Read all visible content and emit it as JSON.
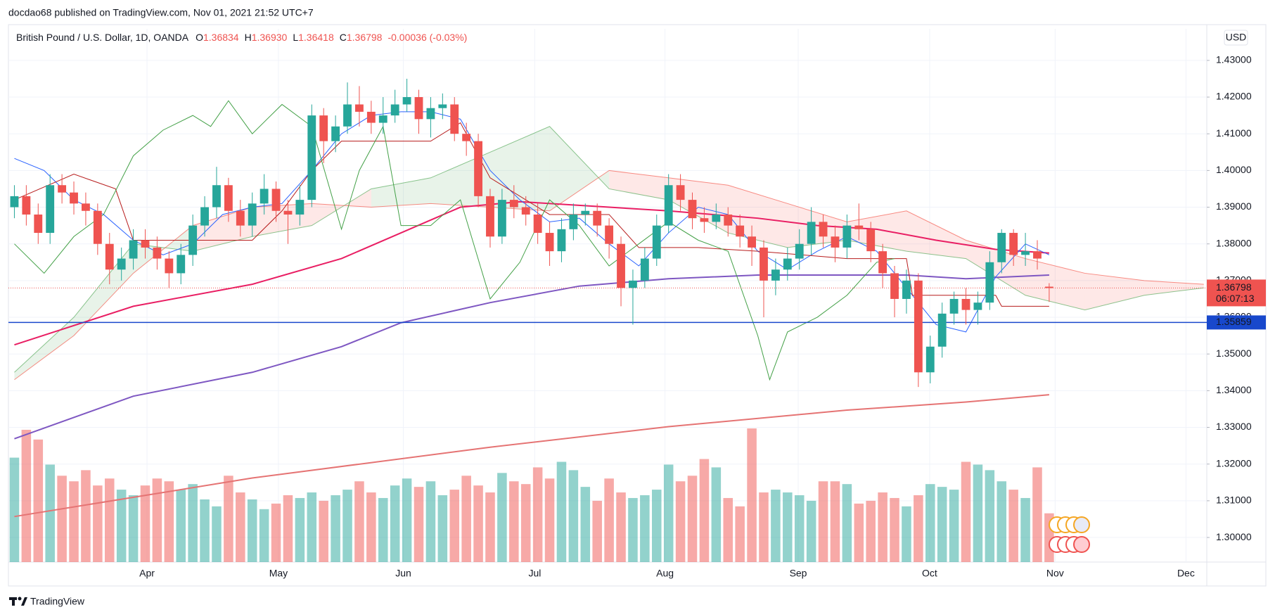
{
  "chart_data": {
    "type": "candlestick",
    "published": "docdao68 published on TradingView.com, Nov 01, 2021 21:52 UTC+7",
    "title": "British Pound / U.S. Dollar, 1D, OANDA",
    "ohlc_header": {
      "labels": [
        "O",
        "H",
        "L",
        "C"
      ],
      "values": [
        1.36834,
        {
          "value": 1.3693,
          "label": "1.36930"
        },
        1.36418,
        1.36798
      ],
      "change": "-0.00036 (-0.03%)"
    },
    "currency": "USD",
    "brand": "TradingView",
    "up_color": "#26a69a",
    "down_color": "#ef5350",
    "grid": true,
    "xlim": [
      -1,
      200.5
    ],
    "xticks": [
      {
        "value": 22.3,
        "label": "Apr"
      },
      {
        "value": 44.4,
        "label": "May"
      },
      {
        "value": 65.4,
        "label": "Jun"
      },
      {
        "value": 87.5,
        "label": "Jul"
      },
      {
        "value": 109.4,
        "label": "Aug"
      },
      {
        "value": 131.8,
        "label": "Sep"
      },
      {
        "value": 153.9,
        "label": "Oct"
      },
      {
        "value": 175,
        "label": "Nov"
      },
      {
        "value": 197,
        "label": "Dec"
      }
    ],
    "ylim": [
      1.2933,
      1.4386
    ],
    "yticks": [
      {
        "value": 1.3,
        "label": "1.30000"
      },
      {
        "value": 1.31,
        "label": "1.31000"
      },
      {
        "value": 1.32,
        "label": "1.32000"
      },
      {
        "value": 1.33,
        "label": "1.33000"
      },
      {
        "value": 1.34,
        "label": "1.34000"
      },
      {
        "value": 1.35,
        "label": "1.35000"
      },
      {
        "value": 1.36,
        "label": "1.36000"
      },
      {
        "value": 1.37,
        "label": "1.37000"
      },
      {
        "value": 1.38,
        "label": "1.38000"
      },
      {
        "value": 1.39,
        "label": "1.39000"
      },
      {
        "value": 1.4,
        "label": "1.40000"
      },
      {
        "value": 1.41,
        "label": "1.41000"
      },
      {
        "value": 1.42,
        "label": "1.42000"
      },
      {
        "value": 1.43,
        "label": "1.43000"
      }
    ],
    "x": [
      0,
      2,
      4,
      6,
      8,
      10,
      12,
      14,
      16,
      18,
      20,
      22,
      24,
      26,
      28,
      30,
      32,
      34,
      36,
      38,
      40,
      42,
      44,
      46,
      48,
      50,
      52,
      54,
      56,
      58,
      60,
      62,
      64,
      66,
      68,
      70,
      72,
      74,
      76,
      78,
      80,
      82,
      84,
      86,
      88,
      90,
      92,
      94,
      96,
      98,
      100,
      102,
      104,
      106,
      108,
      110,
      112,
      114,
      116,
      118,
      120,
      122,
      124,
      126,
      128,
      130,
      132,
      134,
      136,
      138,
      140,
      142,
      144,
      146,
      148,
      150,
      152,
      154,
      156,
      158,
      160,
      162,
      164,
      166,
      168,
      170,
      172,
      174
    ],
    "candles": [
      [
        1.39,
        1.396,
        1.387,
        1.393
      ],
      [
        1.393,
        1.396,
        1.385,
        1.388
      ],
      [
        1.388,
        1.391,
        1.38,
        1.383
      ],
      [
        1.383,
        1.399,
        1.38,
        1.396
      ],
      [
        1.396,
        1.399,
        1.391,
        1.394
      ],
      [
        1.394,
        1.397,
        1.388,
        1.391
      ],
      [
        1.391,
        1.394,
        1.385,
        1.389
      ],
      [
        1.389,
        1.391,
        1.377,
        1.38
      ],
      [
        1.38,
        1.383,
        1.369,
        1.373
      ],
      [
        1.373,
        1.379,
        1.37,
        1.376
      ],
      [
        1.376,
        1.384,
        1.373,
        1.381
      ],
      [
        1.381,
        1.384,
        1.376,
        1.379
      ],
      [
        1.379,
        1.382,
        1.373,
        1.376
      ],
      [
        1.376,
        1.378,
        1.368,
        1.372
      ],
      [
        1.372,
        1.38,
        1.369,
        1.377
      ],
      [
        1.377,
        1.388,
        1.374,
        1.385
      ],
      [
        1.385,
        1.393,
        1.382,
        1.39
      ],
      [
        1.39,
        1.401,
        1.387,
        1.396
      ],
      [
        1.396,
        1.398,
        1.386,
        1.389
      ],
      [
        1.389,
        1.392,
        1.382,
        1.385
      ],
      [
        1.385,
        1.394,
        1.382,
        1.391
      ],
      [
        1.391,
        1.399,
        1.388,
        1.395
      ],
      [
        1.395,
        1.397,
        1.386,
        1.389
      ],
      [
        1.389,
        1.392,
        1.38,
        1.388
      ],
      [
        1.388,
        1.396,
        1.385,
        1.392
      ],
      [
        1.392,
        1.418,
        1.39,
        1.415
      ],
      [
        1.415,
        1.417,
        1.402,
        1.408
      ],
      [
        1.408,
        1.415,
        1.405,
        1.412
      ],
      [
        1.412,
        1.424,
        1.41,
        1.418
      ],
      [
        1.418,
        1.423,
        1.412,
        1.416
      ],
      [
        1.416,
        1.419,
        1.41,
        1.413
      ],
      [
        1.413,
        1.42,
        1.41,
        1.415
      ],
      [
        1.415,
        1.422,
        1.413,
        1.418
      ],
      [
        1.418,
        1.425,
        1.416,
        1.42
      ],
      [
        1.42,
        1.422,
        1.41,
        1.414
      ],
      [
        1.414,
        1.42,
        1.409,
        1.417
      ],
      [
        1.417,
        1.421,
        1.414,
        1.418
      ],
      [
        1.418,
        1.42,
        1.408,
        1.41
      ],
      [
        1.41,
        1.413,
        1.404,
        1.408
      ],
      [
        1.408,
        1.41,
        1.39,
        1.393
      ],
      [
        1.393,
        1.395,
        1.379,
        1.382
      ],
      [
        1.382,
        1.395,
        1.38,
        1.392
      ],
      [
        1.392,
        1.396,
        1.387,
        1.39
      ],
      [
        1.39,
        1.393,
        1.385,
        1.388
      ],
      [
        1.388,
        1.391,
        1.38,
        1.383
      ],
      [
        1.383,
        1.386,
        1.374,
        1.378
      ],
      [
        1.378,
        1.387,
        1.375,
        1.384
      ],
      [
        1.384,
        1.391,
        1.381,
        1.388
      ],
      [
        1.388,
        1.391,
        1.385,
        1.389
      ],
      [
        1.389,
        1.391,
        1.382,
        1.385
      ],
      [
        1.385,
        1.387,
        1.376,
        1.38
      ],
      [
        1.38,
        1.382,
        1.363,
        1.368
      ],
      [
        1.368,
        1.373,
        1.358,
        1.37
      ],
      [
        1.37,
        1.379,
        1.368,
        1.376
      ],
      [
        1.376,
        1.388,
        1.374,
        1.385
      ],
      [
        1.385,
        1.399,
        1.383,
        1.396
      ],
      [
        1.396,
        1.399,
        1.389,
        1.392
      ],
      [
        1.392,
        1.394,
        1.384,
        1.387
      ],
      [
        1.387,
        1.39,
        1.383,
        1.386
      ],
      [
        1.386,
        1.391,
        1.384,
        1.388
      ],
      [
        1.388,
        1.39,
        1.382,
        1.385
      ],
      [
        1.385,
        1.388,
        1.379,
        1.382
      ],
      [
        1.382,
        1.385,
        1.374,
        1.379
      ],
      [
        1.379,
        1.381,
        1.36,
        1.37
      ],
      [
        1.37,
        1.376,
        1.366,
        1.373
      ],
      [
        1.373,
        1.379,
        1.37,
        1.376
      ],
      [
        1.376,
        1.384,
        1.373,
        1.38
      ],
      [
        1.38,
        1.39,
        1.377,
        1.386
      ],
      [
        1.386,
        1.388,
        1.379,
        1.382
      ],
      [
        1.382,
        1.385,
        1.375,
        1.379
      ],
      [
        1.379,
        1.388,
        1.376,
        1.385
      ],
      [
        1.385,
        1.391,
        1.381,
        1.384
      ],
      [
        1.384,
        1.386,
        1.375,
        1.378
      ],
      [
        1.378,
        1.38,
        1.368,
        1.372
      ],
      [
        1.372,
        1.374,
        1.36,
        1.365
      ],
      [
        1.365,
        1.373,
        1.361,
        1.37
      ],
      [
        1.37,
        1.372,
        1.341,
        1.345
      ],
      [
        1.345,
        1.355,
        1.342,
        1.352
      ],
      [
        1.352,
        1.364,
        1.349,
        1.361
      ],
      [
        1.361,
        1.367,
        1.358,
        1.365
      ],
      [
        1.365,
        1.368,
        1.358,
        1.362
      ],
      [
        1.362,
        1.367,
        1.358,
        1.364
      ],
      [
        1.364,
        1.378,
        1.362,
        1.375
      ],
      [
        1.375,
        1.384,
        1.372,
        1.383
      ],
      [
        1.383,
        1.384,
        1.374,
        1.377
      ],
      [
        1.377,
        1.383,
        1.374,
        1.378
      ],
      [
        1.378,
        1.381,
        1.373,
        1.376
      ],
      [
        1.36834,
        1.3693,
        1.36418,
        1.36798
      ]
    ],
    "volume": [
      75,
      95,
      88,
      70,
      62,
      58,
      66,
      55,
      60,
      52,
      48,
      55,
      60,
      58,
      52,
      56,
      45,
      40,
      62,
      50,
      45,
      38,
      42,
      48,
      46,
      50,
      44,
      48,
      52,
      58,
      50,
      46,
      55,
      60,
      54,
      58,
      48,
      52,
      62,
      55,
      50,
      64,
      58,
      56,
      68,
      60,
      72,
      66,
      54,
      44,
      60,
      50,
      46,
      48,
      52,
      70,
      58,
      62,
      74,
      68,
      46,
      40,
      96,
      50,
      52,
      50,
      48,
      44,
      58,
      58,
      56,
      42,
      44,
      50,
      46,
      40,
      48,
      56,
      54,
      52,
      72,
      70,
      66,
      58,
      52,
      46,
      68,
      35
    ],
    "cloud": {
      "x": [
        0,
        10,
        20,
        30,
        40,
        50,
        60,
        70,
        80,
        90,
        100,
        110,
        120,
        130,
        140,
        150,
        160,
        170,
        180,
        190,
        200
      ],
      "span_a": [
        1.345,
        1.36,
        1.38,
        1.378,
        1.382,
        1.385,
        1.395,
        1.398,
        1.405,
        1.412,
        1.395,
        1.392,
        1.383,
        1.379,
        1.381,
        1.378,
        1.376,
        1.366,
        1.362,
        1.366,
        1.368
      ],
      "span_b": [
        1.343,
        1.355,
        1.372,
        1.385,
        1.39,
        1.391,
        1.39,
        1.391,
        1.39,
        1.389,
        1.4,
        1.398,
        1.396,
        1.391,
        1.386,
        1.389,
        1.381,
        1.376,
        1.372,
        1.37,
        1.369
      ],
      "colors": [
        "#43a047",
        "#f44336"
      ]
    },
    "lines": [
      {
        "color": "#e91e63",
        "width": 2,
        "x": [
          0,
          20,
          40,
          55,
          65,
          75,
          85,
          100,
          110,
          125,
          135,
          145,
          155,
          165,
          174
        ],
        "values": [
          1.3525,
          1.363,
          1.369,
          1.376,
          1.383,
          1.39,
          1.3915,
          1.39,
          1.389,
          1.387,
          1.385,
          1.384,
          1.381,
          1.3785,
          1.3775
        ]
      },
      {
        "color": "#7e57c2",
        "width": 2,
        "x": [
          0,
          20,
          40,
          55,
          65,
          80,
          95,
          110,
          125,
          140,
          150,
          160,
          174
        ],
        "values": [
          1.3269,
          1.3385,
          1.345,
          1.352,
          1.3585,
          1.364,
          1.3685,
          1.3705,
          1.3715,
          1.3715,
          1.3715,
          1.3705,
          1.3715
        ]
      },
      {
        "color": "#e57373",
        "width": 2,
        "x": [
          0,
          40,
          80,
          110,
          140,
          160,
          174
        ],
        "values": [
          1.3057,
          1.3162,
          1.3246,
          1.3302,
          1.3347,
          1.3369,
          1.3389
        ]
      },
      {
        "color": "#2962ff",
        "width": 1,
        "x": [
          0,
          5,
          10,
          15,
          20,
          25,
          30,
          35,
          40,
          45,
          50,
          55,
          60,
          65,
          70,
          75,
          80,
          85,
          90,
          95,
          100,
          105,
          110,
          115,
          120,
          125,
          130,
          135,
          140,
          145,
          150,
          155,
          160,
          165,
          170,
          174
        ],
        "values": [
          1.4033,
          1.4,
          1.392,
          1.388,
          1.381,
          1.377,
          1.38,
          1.388,
          1.39,
          1.391,
          1.4,
          1.41,
          1.415,
          1.416,
          1.416,
          1.414,
          1.4,
          1.392,
          1.386,
          1.387,
          1.38,
          1.374,
          1.383,
          1.39,
          1.388,
          1.378,
          1.373,
          1.378,
          1.382,
          1.378,
          1.368,
          1.358,
          1.356,
          1.371,
          1.38,
          1.377
        ]
      },
      {
        "color": "#b71c1c",
        "width": 1,
        "x": [
          0,
          10,
          17,
          20,
          40,
          45,
          50,
          55,
          70,
          75,
          80,
          90,
          100,
          105,
          115,
          125,
          140,
          150,
          151,
          165,
          166,
          174
        ],
        "values": [
          1.392,
          1.399,
          1.395,
          1.381,
          1.381,
          1.389,
          1.4,
          1.408,
          1.408,
          1.413,
          1.398,
          1.388,
          1.388,
          1.379,
          1.379,
          1.378,
          1.376,
          1.376,
          1.366,
          1.366,
          1.363,
          1.363
        ]
      },
      {
        "color": "#43a047",
        "width": 1,
        "x": [
          0,
          5,
          10,
          15,
          20,
          25,
          30,
          33,
          36,
          40,
          45,
          50,
          55,
          58,
          62,
          65,
          70,
          75,
          80,
          85,
          90,
          95,
          100,
          105,
          110,
          115,
          120,
          125,
          127,
          130,
          135,
          140,
          145,
          148
        ],
        "values": [
          1.38,
          1.372,
          1.382,
          1.388,
          1.404,
          1.411,
          1.415,
          1.412,
          1.419,
          1.41,
          1.418,
          1.412,
          1.384,
          1.4,
          1.412,
          1.385,
          1.385,
          1.392,
          1.365,
          1.375,
          1.392,
          1.385,
          1.374,
          1.38,
          1.386,
          1.381,
          1.378,
          1.355,
          1.343,
          1.356,
          1.36,
          1.366,
          1.375,
          1.376
        ]
      }
    ],
    "hline": {
      "value": 1.35859,
      "color": "#1848cc"
    },
    "last": {
      "value": 1.36798,
      "countdown": "06:07:13",
      "color": "#ef5350"
    }
  }
}
